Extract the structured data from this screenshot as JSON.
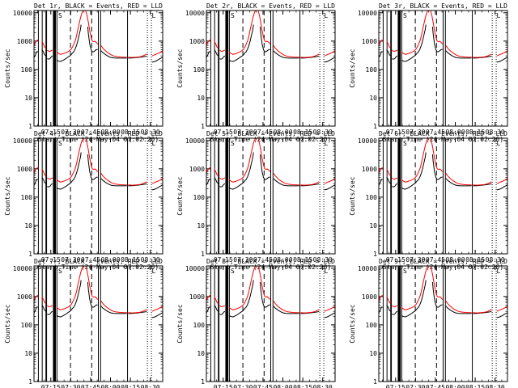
{
  "figure": {
    "ylabel": "Counts/sec",
    "xlabel": "Start Time (24-May-04 07:02:20)",
    "y_ticks": [
      "1",
      "10",
      "100",
      "1000",
      "10000"
    ],
    "x_ticks": [
      "07:15",
      "07:30",
      "07:45",
      "08:00",
      "08:15",
      "08:30"
    ],
    "colors": {
      "events": "#000000",
      "lld": "#ff0000"
    }
  },
  "chart_data": {
    "type": "line",
    "layout": "3x3 grid",
    "yscale": "log",
    "ylim": [
      1,
      12000
    ],
    "xlim_minutes_from_start": [
      0,
      97
    ],
    "x_ticks_minutes_from_start": [
      12.67,
      27.67,
      42.67,
      57.67,
      72.67,
      87.67
    ],
    "markers": {
      "solid_lines_min": [
        3.3,
        6.2,
        9.0,
        9.5,
        17.3,
        48.5,
        50.2,
        70.5
      ],
      "thick_band_min": [
        14.3,
        16.5
      ],
      "dashed_lines_min": [
        27.5,
        43.5
      ],
      "dotted_lines_min": [
        85.5,
        88.5
      ],
      "labels": [
        "S",
        "L"
      ]
    },
    "panels": [
      {
        "title": "Det 1r, BLACK = Events, RED = LLD"
      },
      {
        "title": "Det 2r, BLACK = Events, RED = LLD"
      },
      {
        "title": "Det 3r, BLACK = Events, RED = LLD"
      },
      {
        "title": "Det 4r, BLACK = Events, RED = LLD"
      },
      {
        "title": "Det 5r, BLACK = Events, RED = LLD"
      },
      {
        "title": "Det 6r, BLACK = Events, RED = LLD"
      },
      {
        "title": "Det 7r, BLACK = Events, RED = LLD"
      },
      {
        "title": "Det 8r, BLACK = Events, RED = LLD"
      },
      {
        "title": "Det 9r, BLACK = Events, RED = LLD"
      }
    ],
    "series": [
      {
        "name": "Events",
        "color": "#000000",
        "segments": [
          [
            [
              0,
              260
            ],
            [
              1,
              320
            ],
            [
              2,
              420
            ],
            [
              3,
              420
            ]
          ],
          [
            [
              6,
              500
            ],
            [
              7,
              420
            ],
            [
              8,
              330
            ],
            [
              9,
              300
            ]
          ],
          [
            [
              10,
              240
            ],
            [
              11,
              230
            ],
            [
              12,
              240
            ],
            [
              13,
              280
            ],
            [
              14,
              300
            ]
          ],
          [
            [
              17,
              220
            ],
            [
              18,
              200
            ],
            [
              20,
              190
            ],
            [
              22,
              210
            ],
            [
              24,
              240
            ],
            [
              26,
              280
            ],
            [
              27,
              300
            ],
            [
              28,
              330
            ],
            [
              29,
              380
            ],
            [
              30,
              420
            ],
            [
              31,
              520
            ],
            [
              32,
              700
            ],
            [
              33,
              1000
            ],
            [
              34,
              1600
            ],
            [
              35,
              2600
            ],
            [
              35.5,
              3800
            ]
          ],
          [
            [
              40.5,
              3200
            ],
            [
              41,
              1800
            ],
            [
              41.5,
              1200
            ],
            [
              42,
              800
            ],
            [
              43,
              500
            ],
            [
              44,
              420
            ],
            [
              45,
              420
            ],
            [
              46,
              460
            ],
            [
              47,
              500
            ],
            [
              48,
              510
            ]
          ],
          [
            [
              50.5,
              460
            ],
            [
              52,
              390
            ],
            [
              54,
              330
            ],
            [
              56,
              290
            ],
            [
              58,
              265
            ],
            [
              60,
              255
            ],
            [
              62,
              250
            ],
            [
              65,
              250
            ],
            [
              68,
              250
            ],
            [
              70,
              252
            ]
          ],
          [
            [
              71,
              250
            ],
            [
              74,
              252
            ],
            [
              77,
              260
            ],
            [
              80,
              270
            ],
            [
              82,
              280
            ],
            [
              84,
              290
            ],
            [
              85,
              300
            ]
          ],
          [
            [
              89,
              180
            ],
            [
              91,
              190
            ],
            [
              93,
              210
            ],
            [
              95,
              240
            ],
            [
              97,
              270
            ]
          ]
        ]
      },
      {
        "name": "LLD",
        "color": "#ff0000",
        "segments": [
          [
            [
              0,
              700
            ],
            [
              1,
              900
            ],
            [
              2,
              1050
            ],
            [
              3,
              1100
            ]
          ],
          [
            [
              6,
              1000
            ],
            [
              7,
              800
            ],
            [
              8,
              620
            ],
            [
              9,
              560
            ]
          ],
          [
            [
              10,
              480
            ],
            [
              11,
              440
            ],
            [
              12,
              430
            ],
            [
              13,
              460
            ],
            [
              14,
              480
            ]
          ],
          [
            [
              17,
              420
            ],
            [
              18,
              380
            ],
            [
              20,
              340
            ],
            [
              22,
              360
            ],
            [
              24,
              390
            ],
            [
              26,
              430
            ],
            [
              27,
              470
            ],
            [
              28,
              520
            ],
            [
              29,
              620
            ],
            [
              30,
              780
            ],
            [
              31,
              1000
            ],
            [
              32,
              1500
            ],
            [
              33,
              2500
            ],
            [
              34,
              4000
            ],
            [
              35,
              6500
            ],
            [
              36,
              9500
            ],
            [
              37,
              12000
            ]
          ],
          [
            [
              39,
              12000
            ],
            [
              40,
              8000
            ],
            [
              41,
              4500
            ],
            [
              42,
              2400
            ],
            [
              43,
              1400
            ],
            [
              44,
              1000
            ],
            [
              45,
              950
            ],
            [
              46,
              980
            ],
            [
              47,
              900
            ],
            [
              48,
              780
            ]
          ],
          [
            [
              50.5,
              700
            ],
            [
              52,
              560
            ],
            [
              54,
              450
            ],
            [
              56,
              380
            ],
            [
              58,
              330
            ],
            [
              60,
              300
            ],
            [
              62,
              285
            ],
            [
              65,
              275
            ],
            [
              68,
              270
            ],
            [
              70,
              270
            ]
          ],
          [
            [
              71,
              270
            ],
            [
              74,
              265
            ],
            [
              77,
              270
            ],
            [
              80,
              280
            ],
            [
              82,
              300
            ],
            [
              84,
              330
            ],
            [
              85,
              350
            ]
          ],
          [
            [
              89,
              300
            ],
            [
              91,
              330
            ],
            [
              93,
              360
            ],
            [
              95,
              400
            ],
            [
              97,
              460
            ]
          ]
        ]
      }
    ]
  }
}
